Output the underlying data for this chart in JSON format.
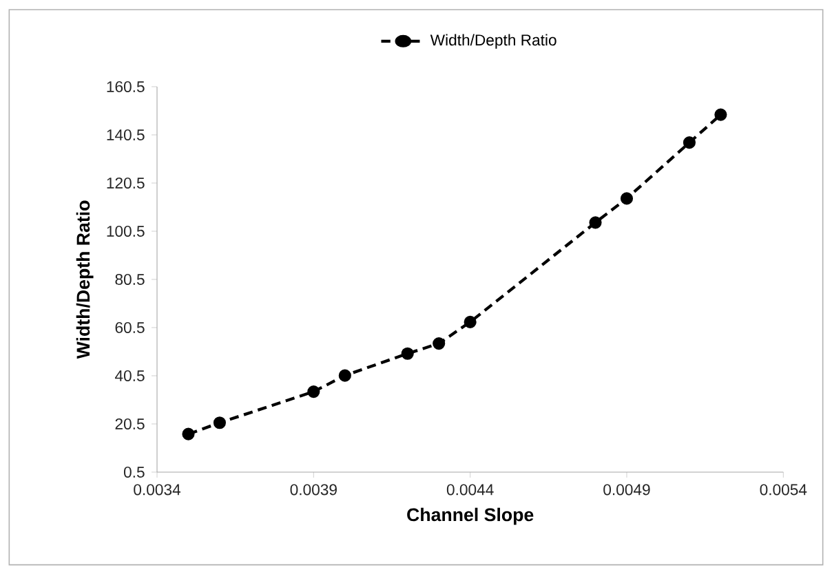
{
  "chart_data": {
    "type": "line",
    "xlabel": "Channel Slope",
    "ylabel": "Width/Depth Ratio",
    "x": [
      0.0035,
      0.0036,
      0.0039,
      0.004,
      0.0042,
      0.0043,
      0.0044,
      0.0048,
      0.0049,
      0.0051,
      0.0052
    ],
    "series": [
      {
        "name": "Width/Depth Ratio",
        "color": "#000000",
        "values": [
          16.3,
          21,
          33.9,
          40.6,
          49.7,
          53.9,
          62.8,
          104.1,
          114.1,
          137.3,
          148.9
        ]
      }
    ],
    "xlim": [
      0.0034,
      0.0054
    ],
    "xticks": [
      0.0034,
      0.0039,
      0.0044,
      0.0049,
      0.0054
    ],
    "ylim": [
      0.5,
      160.5
    ],
    "yticks": [
      0.5,
      20.5,
      40.5,
      60.5,
      80.5,
      100.5,
      120.5,
      140.5,
      160.5
    ],
    "legend": "top",
    "marker": "circle",
    "line_style": "dashed",
    "grid": false
  }
}
